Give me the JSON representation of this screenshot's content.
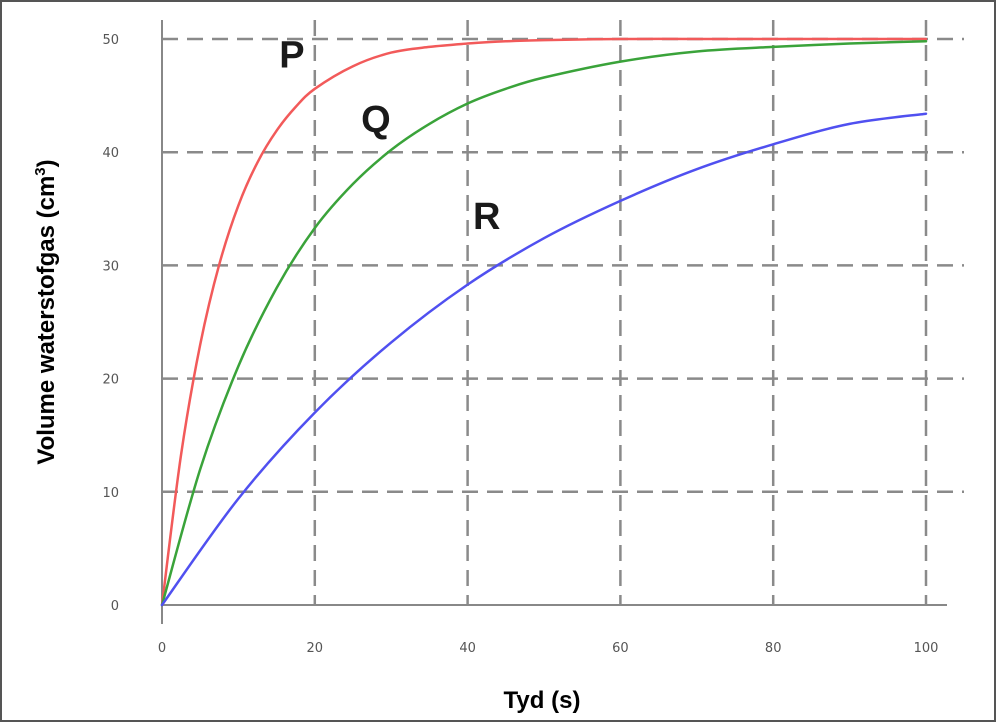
{
  "chart_data": {
    "type": "line",
    "title": "",
    "xlabel": "Tyd (s)",
    "ylabel_main": "Volume waterstofgas (cm",
    "ylabel_sup": "3",
    "ylabel_close": ")",
    "xlim": [
      0,
      100
    ],
    "ylim": [
      0,
      50
    ],
    "x_ticks": [
      "0",
      "20",
      "40",
      "60",
      "80",
      "100"
    ],
    "y_ticks": [
      "0",
      "10",
      "20",
      "30",
      "40",
      "50"
    ],
    "grid": true,
    "grid_style": "dashed",
    "series": [
      {
        "name": "P",
        "color": "#f25a5a",
        "x": [
          0,
          2.5,
          5,
          7.5,
          10,
          12.5,
          15,
          17.5,
          20,
          25,
          30,
          35,
          40,
          45,
          50,
          60,
          70,
          80,
          90,
          100
        ],
        "values": [
          0,
          13.3,
          23.0,
          30.1,
          35.3,
          39.1,
          41.9,
          44.0,
          45.6,
          47.6,
          48.8,
          49.3,
          49.6,
          49.8,
          49.9,
          50,
          50,
          50,
          50,
          50
        ]
      },
      {
        "name": "Q",
        "color": "#3aa33a",
        "x": [
          0,
          5,
          10,
          15,
          20,
          25,
          30,
          35,
          40,
          45,
          50,
          60,
          70,
          80,
          90,
          100
        ],
        "values": [
          0,
          12.0,
          21.1,
          28.0,
          33.3,
          37.2,
          40.2,
          42.5,
          44.3,
          45.6,
          46.6,
          48.0,
          48.9,
          49.3,
          49.6,
          49.8
        ]
      },
      {
        "name": "R",
        "color": "#5050f0",
        "x": [
          0,
          10,
          20,
          30,
          40,
          50,
          60,
          70,
          80,
          90,
          100
        ],
        "values": [
          0,
          9.4,
          17.0,
          23.2,
          28.3,
          32.4,
          35.7,
          38.5,
          40.7,
          42.5,
          43.4
        ]
      }
    ],
    "annotations": [
      {
        "text": "P",
        "series": "P"
      },
      {
        "text": "Q",
        "series": "Q"
      },
      {
        "text": "R",
        "series": "R"
      }
    ]
  }
}
